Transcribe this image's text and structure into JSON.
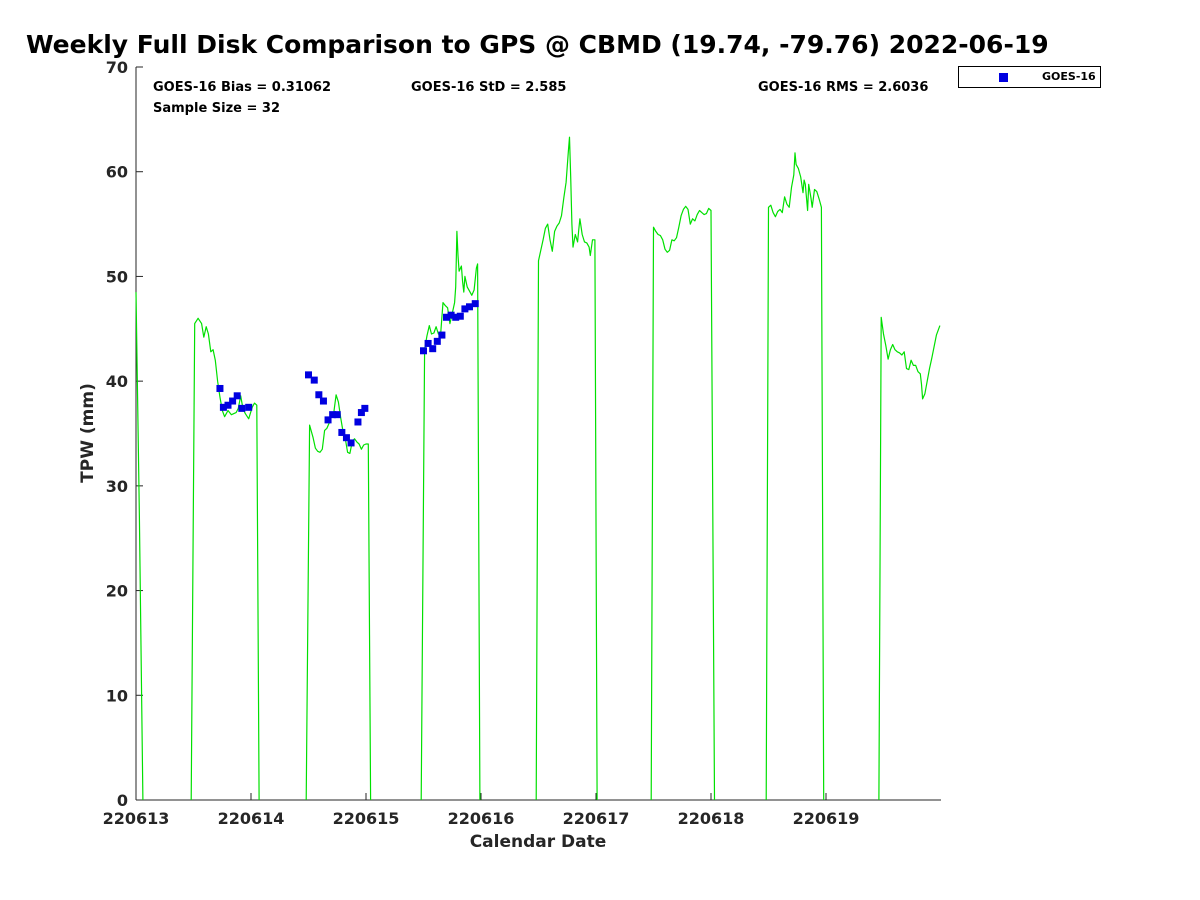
{
  "chart_data": {
    "type": "line+scatter",
    "title": "Weekly Full Disk Comparison to GPS @ CBMD (19.74, -79.76) 2022-06-19",
    "xlabel": "Calendar Date",
    "ylabel": "TPW (mm)",
    "xlim": [
      0,
      7
    ],
    "ylim": [
      0,
      70
    ],
    "x_tick_labels": [
      "220613",
      "220614",
      "220615",
      "220616",
      "220617",
      "220618",
      "220619"
    ],
    "x_ticks": [
      0,
      1,
      2,
      3,
      4,
      5,
      6
    ],
    "y_ticks": [
      0,
      10,
      20,
      30,
      40,
      50,
      60,
      70
    ],
    "x_unit_note": "days since 2022-06-13",
    "stats": {
      "bias": "GOES-16 Bias = 0.31062",
      "std": "GOES-16 StD = 2.585",
      "rms": "GOES-16 RMS = 2.6036",
      "sample": "Sample Size = 32"
    },
    "legend": {
      "position": "outside-top-right",
      "entries": [
        "GOES-16"
      ]
    },
    "colors": {
      "gps_line": "#00e000",
      "goes_marker": "#0000e0"
    },
    "series": [
      {
        "name": "GPS",
        "type": "line",
        "segments": [
          [
            [
              0.0,
              48.5
            ],
            [
              0.03,
              27
            ],
            [
              0.06,
              0
            ]
          ],
          [
            [
              0.48,
              0
            ],
            [
              0.51,
              45.5
            ],
            [
              0.54,
              46
            ],
            [
              0.57,
              45.5
            ],
            [
              0.59,
              44.2
            ],
            [
              0.61,
              45.2
            ],
            [
              0.63,
              44.5
            ],
            [
              0.65,
              42.8
            ],
            [
              0.67,
              43
            ],
            [
              0.69,
              42
            ],
            [
              0.71,
              40
            ],
            [
              0.73,
              38.5
            ],
            [
              0.75,
              37.2
            ],
            [
              0.77,
              36.6
            ],
            [
              0.8,
              37.2
            ],
            [
              0.83,
              36.8
            ],
            [
              0.87,
              37
            ],
            [
              0.89,
              37.4
            ],
            [
              0.91,
              38.6
            ],
            [
              0.93,
              37.4
            ],
            [
              0.95,
              36.9
            ],
            [
              0.98,
              36.4
            ],
            [
              1.01,
              37.5
            ],
            [
              1.03,
              37.9
            ],
            [
              1.05,
              37.7
            ],
            [
              1.07,
              0
            ]
          ],
          [
            [
              1.48,
              0
            ],
            [
              1.51,
              35.8
            ],
            [
              1.54,
              34.6
            ],
            [
              1.56,
              33.6
            ],
            [
              1.58,
              33.3
            ],
            [
              1.6,
              33.2
            ],
            [
              1.62,
              33.5
            ],
            [
              1.64,
              35.3
            ],
            [
              1.66,
              35.5
            ],
            [
              1.68,
              36
            ],
            [
              1.7,
              36.7
            ],
            [
              1.72,
              37
            ],
            [
              1.74,
              38.7
            ],
            [
              1.76,
              38
            ],
            [
              1.78,
              36.5
            ],
            [
              1.8,
              35.2
            ],
            [
              1.82,
              34.5
            ],
            [
              1.84,
              33.2
            ],
            [
              1.86,
              33.1
            ],
            [
              1.88,
              34.2
            ],
            [
              1.9,
              34.5
            ],
            [
              1.92,
              34.2
            ],
            [
              1.94,
              34
            ],
            [
              1.96,
              33.5
            ],
            [
              1.98,
              33.9
            ],
            [
              2.0,
              34
            ],
            [
              2.02,
              34
            ],
            [
              2.04,
              0
            ]
          ],
          [
            [
              2.48,
              0
            ],
            [
              2.51,
              43
            ],
            [
              2.53,
              44.3
            ],
            [
              2.55,
              45.3
            ],
            [
              2.57,
              44.5
            ],
            [
              2.59,
              44.6
            ],
            [
              2.61,
              45.2
            ],
            [
              2.63,
              44.5
            ],
            [
              2.65,
              44.7
            ],
            [
              2.67,
              47.5
            ],
            [
              2.69,
              47.2
            ],
            [
              2.71,
              47
            ],
            [
              2.73,
              45.5
            ],
            [
              2.75,
              46.5
            ],
            [
              2.77,
              47.5
            ],
            [
              2.78,
              49
            ],
            [
              2.79,
              54.3
            ],
            [
              2.8,
              52
            ],
            [
              2.81,
              50.5
            ],
            [
              2.83,
              51
            ],
            [
              2.84,
              49.5
            ],
            [
              2.85,
              48.5
            ],
            [
              2.86,
              50
            ],
            [
              2.88,
              49
            ],
            [
              2.9,
              48.6
            ],
            [
              2.92,
              48.2
            ],
            [
              2.94,
              48.7
            ],
            [
              2.96,
              50.8
            ],
            [
              2.97,
              51.2
            ],
            [
              2.99,
              0
            ]
          ],
          [
            [
              3.48,
              0
            ],
            [
              3.5,
              51.5
            ],
            [
              3.52,
              52.5
            ],
            [
              3.54,
              53.5
            ],
            [
              3.56,
              54.6
            ],
            [
              3.58,
              55
            ],
            [
              3.6,
              53.5
            ],
            [
              3.62,
              52.4
            ],
            [
              3.64,
              54.3
            ],
            [
              3.66,
              54.8
            ],
            [
              3.68,
              55.1
            ],
            [
              3.7,
              55.8
            ],
            [
              3.72,
              57.5
            ],
            [
              3.74,
              59
            ],
            [
              3.76,
              62
            ],
            [
              3.77,
              63.3
            ],
            [
              3.78,
              59.5
            ],
            [
              3.79,
              55
            ],
            [
              3.8,
              52.8
            ],
            [
              3.82,
              54
            ],
            [
              3.84,
              53.3
            ],
            [
              3.85,
              54.5
            ],
            [
              3.86,
              55.5
            ],
            [
              3.88,
              54
            ],
            [
              3.9,
              53.3
            ],
            [
              3.92,
              53.2
            ],
            [
              3.94,
              52.8
            ],
            [
              3.95,
              52
            ],
            [
              3.97,
              53.5
            ],
            [
              3.99,
              53.5
            ],
            [
              4.01,
              0
            ]
          ],
          [
            [
              4.48,
              0
            ],
            [
              4.5,
              54.7
            ],
            [
              4.52,
              54.3
            ],
            [
              4.54,
              54
            ],
            [
              4.56,
              53.9
            ],
            [
              4.58,
              53.5
            ],
            [
              4.6,
              52.6
            ],
            [
              4.62,
              52.3
            ],
            [
              4.64,
              52.5
            ],
            [
              4.66,
              53.5
            ],
            [
              4.68,
              53.4
            ],
            [
              4.7,
              53.7
            ],
            [
              4.72,
              54.7
            ],
            [
              4.74,
              55.8
            ],
            [
              4.76,
              56.4
            ],
            [
              4.78,
              56.7
            ],
            [
              4.8,
              56.4
            ],
            [
              4.82,
              55
            ],
            [
              4.84,
              55.5
            ],
            [
              4.86,
              55.3
            ],
            [
              4.88,
              55.9
            ],
            [
              4.9,
              56.3
            ],
            [
              4.92,
              56.1
            ],
            [
              4.94,
              55.9
            ],
            [
              4.96,
              56
            ],
            [
              4.98,
              56.5
            ],
            [
              5.0,
              56.3
            ],
            [
              5.03,
              0
            ]
          ],
          [
            [
              5.48,
              0
            ],
            [
              5.5,
              56.6
            ],
            [
              5.52,
              56.8
            ],
            [
              5.54,
              56.1
            ],
            [
              5.56,
              55.7
            ],
            [
              5.58,
              56.2
            ],
            [
              5.6,
              56.4
            ],
            [
              5.62,
              56.1
            ],
            [
              5.64,
              57.6
            ],
            [
              5.66,
              56.9
            ],
            [
              5.68,
              56.6
            ],
            [
              5.7,
              58.5
            ],
            [
              5.72,
              59.7
            ],
            [
              5.73,
              61.8
            ],
            [
              5.74,
              60.7
            ],
            [
              5.76,
              60.3
            ],
            [
              5.78,
              59.5
            ],
            [
              5.8,
              58
            ],
            [
              5.81,
              59.2
            ],
            [
              5.82,
              58.8
            ],
            [
              5.84,
              56.3
            ],
            [
              5.85,
              58.8
            ],
            [
              5.87,
              57.4
            ],
            [
              5.88,
              56.6
            ],
            [
              5.9,
              58.3
            ],
            [
              5.92,
              58.1
            ],
            [
              5.94,
              57.4
            ],
            [
              5.96,
              56.6
            ],
            [
              5.98,
              0
            ]
          ],
          [
            [
              6.46,
              0
            ],
            [
              6.48,
              46.1
            ],
            [
              6.5,
              44.5
            ],
            [
              6.52,
              43.4
            ],
            [
              6.54,
              42.1
            ],
            [
              6.56,
              43
            ],
            [
              6.58,
              43.5
            ],
            [
              6.6,
              43
            ],
            [
              6.62,
              42.8
            ],
            [
              6.64,
              42.7
            ],
            [
              6.66,
              42.5
            ],
            [
              6.68,
              42.8
            ],
            [
              6.7,
              41.2
            ],
            [
              6.72,
              41.1
            ],
            [
              6.74,
              42
            ],
            [
              6.76,
              41.5
            ],
            [
              6.78,
              41.5
            ],
            [
              6.8,
              40.9
            ],
            [
              6.82,
              40.7
            ],
            [
              6.83,
              39.7
            ],
            [
              6.84,
              38.3
            ],
            [
              6.86,
              38.8
            ],
            [
              6.88,
              40
            ],
            [
              6.9,
              41.2
            ],
            [
              6.92,
              42.2
            ],
            [
              6.94,
              43.3
            ],
            [
              6.96,
              44.4
            ],
            [
              6.99,
              45.3
            ]
          ]
        ]
      },
      {
        "name": "GOES-16",
        "type": "scatter",
        "points": [
          [
            0.73,
            39.3
          ],
          [
            0.76,
            37.5
          ],
          [
            0.8,
            37.7
          ],
          [
            0.84,
            38.1
          ],
          [
            0.88,
            38.6
          ],
          [
            0.92,
            37.4
          ],
          [
            0.98,
            37.5
          ],
          [
            1.5,
            40.6
          ],
          [
            1.55,
            40.1
          ],
          [
            1.59,
            38.7
          ],
          [
            1.63,
            38.1
          ],
          [
            1.67,
            36.3
          ],
          [
            1.71,
            36.8
          ],
          [
            1.75,
            36.8
          ],
          [
            1.79,
            35.1
          ],
          [
            1.83,
            34.6
          ],
          [
            1.87,
            34.1
          ],
          [
            1.93,
            36.1
          ],
          [
            1.96,
            37
          ],
          [
            1.99,
            37.4
          ],
          [
            2.5,
            42.9
          ],
          [
            2.54,
            43.6
          ],
          [
            2.58,
            43.1
          ],
          [
            2.62,
            43.8
          ],
          [
            2.66,
            44.4
          ],
          [
            2.7,
            46.1
          ],
          [
            2.74,
            46.3
          ],
          [
            2.78,
            46.1
          ],
          [
            2.82,
            46.2
          ],
          [
            2.86,
            46.9
          ],
          [
            2.9,
            47.1
          ],
          [
            2.95,
            47.4
          ]
        ]
      }
    ]
  }
}
